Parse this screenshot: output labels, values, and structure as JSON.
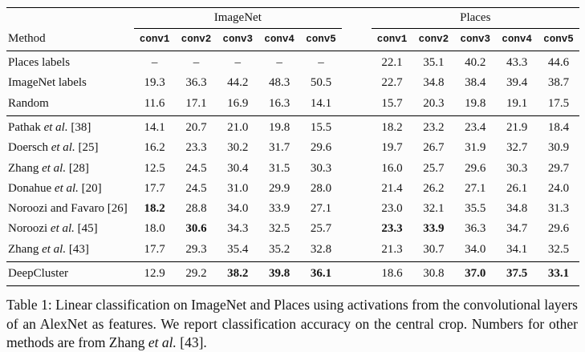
{
  "table": {
    "groups": [
      {
        "label": "ImageNet"
      },
      {
        "label": "Places"
      }
    ],
    "method_header": "Method",
    "conv_headers": [
      "conv1",
      "conv2",
      "conv3",
      "conv4",
      "conv5"
    ],
    "sections": [
      {
        "rows": [
          {
            "method": "Places labels",
            "values": [
              "–",
              "–",
              "–",
              "–",
              "–",
              "22.1",
              "35.1",
              "40.2",
              "43.3",
              "44.6"
            ],
            "bold": []
          },
          {
            "method": "ImageNet labels",
            "values": [
              "19.3",
              "36.3",
              "44.2",
              "48.3",
              "50.5",
              "22.7",
              "34.8",
              "38.4",
              "39.4",
              "38.7"
            ],
            "bold": []
          },
          {
            "method": "Random",
            "values": [
              "11.6",
              "17.1",
              "16.9",
              "16.3",
              "14.1",
              "15.7",
              "20.3",
              "19.8",
              "19.1",
              "17.5"
            ],
            "bold": []
          }
        ]
      },
      {
        "rows": [
          {
            "method": "Pathak et al. [38]",
            "values": [
              "14.1",
              "20.7",
              "21.0",
              "19.8",
              "15.5",
              "18.2",
              "23.2",
              "23.4",
              "21.9",
              "18.4"
            ],
            "bold": []
          },
          {
            "method": "Doersch et al. [25]",
            "values": [
              "16.2",
              "23.3",
              "30.2",
              "31.7",
              "29.6",
              "19.7",
              "26.7",
              "31.9",
              "32.7",
              "30.9"
            ],
            "bold": []
          },
          {
            "method": "Zhang et al. [28]",
            "values": [
              "12.5",
              "24.5",
              "30.4",
              "31.5",
              "30.3",
              "16.0",
              "25.7",
              "29.6",
              "30.3",
              "29.7"
            ],
            "bold": []
          },
          {
            "method": "Donahue et al. [20]",
            "values": [
              "17.7",
              "24.5",
              "31.0",
              "29.9",
              "28.0",
              "21.4",
              "26.2",
              "27.1",
              "26.1",
              "24.0"
            ],
            "bold": []
          },
          {
            "method": "Noroozi and Favaro [26]",
            "values": [
              "18.2",
              "28.8",
              "34.0",
              "33.9",
              "27.1",
              "23.0",
              "32.1",
              "35.5",
              "34.8",
              "31.3"
            ],
            "bold": [
              0
            ]
          },
          {
            "method": "Noroozi et al. [45]",
            "values": [
              "18.0",
              "30.6",
              "34.3",
              "32.5",
              "25.7",
              "23.3",
              "33.9",
              "36.3",
              "34.7",
              "29.6"
            ],
            "bold": [
              1,
              5,
              6
            ]
          },
          {
            "method": "Zhang et al. [43]",
            "values": [
              "17.7",
              "29.3",
              "35.4",
              "35.2",
              "32.8",
              "21.3",
              "30.7",
              "34.0",
              "34.1",
              "32.5"
            ],
            "bold": []
          }
        ]
      },
      {
        "rows": [
          {
            "method": "DeepCluster",
            "values": [
              "12.9",
              "29.2",
              "38.2",
              "39.8",
              "36.1",
              "18.6",
              "30.8",
              "37.0",
              "37.5",
              "33.1"
            ],
            "bold": [
              2,
              3,
              4,
              7,
              8,
              9
            ]
          }
        ]
      }
    ]
  },
  "caption": "Table 1: Linear classification on ImageNet and Places using activations from the convolutional layers of an AlexNet as features. We report classification accuracy on the central crop. Numbers for other methods are from Zhang et al. [43]."
}
